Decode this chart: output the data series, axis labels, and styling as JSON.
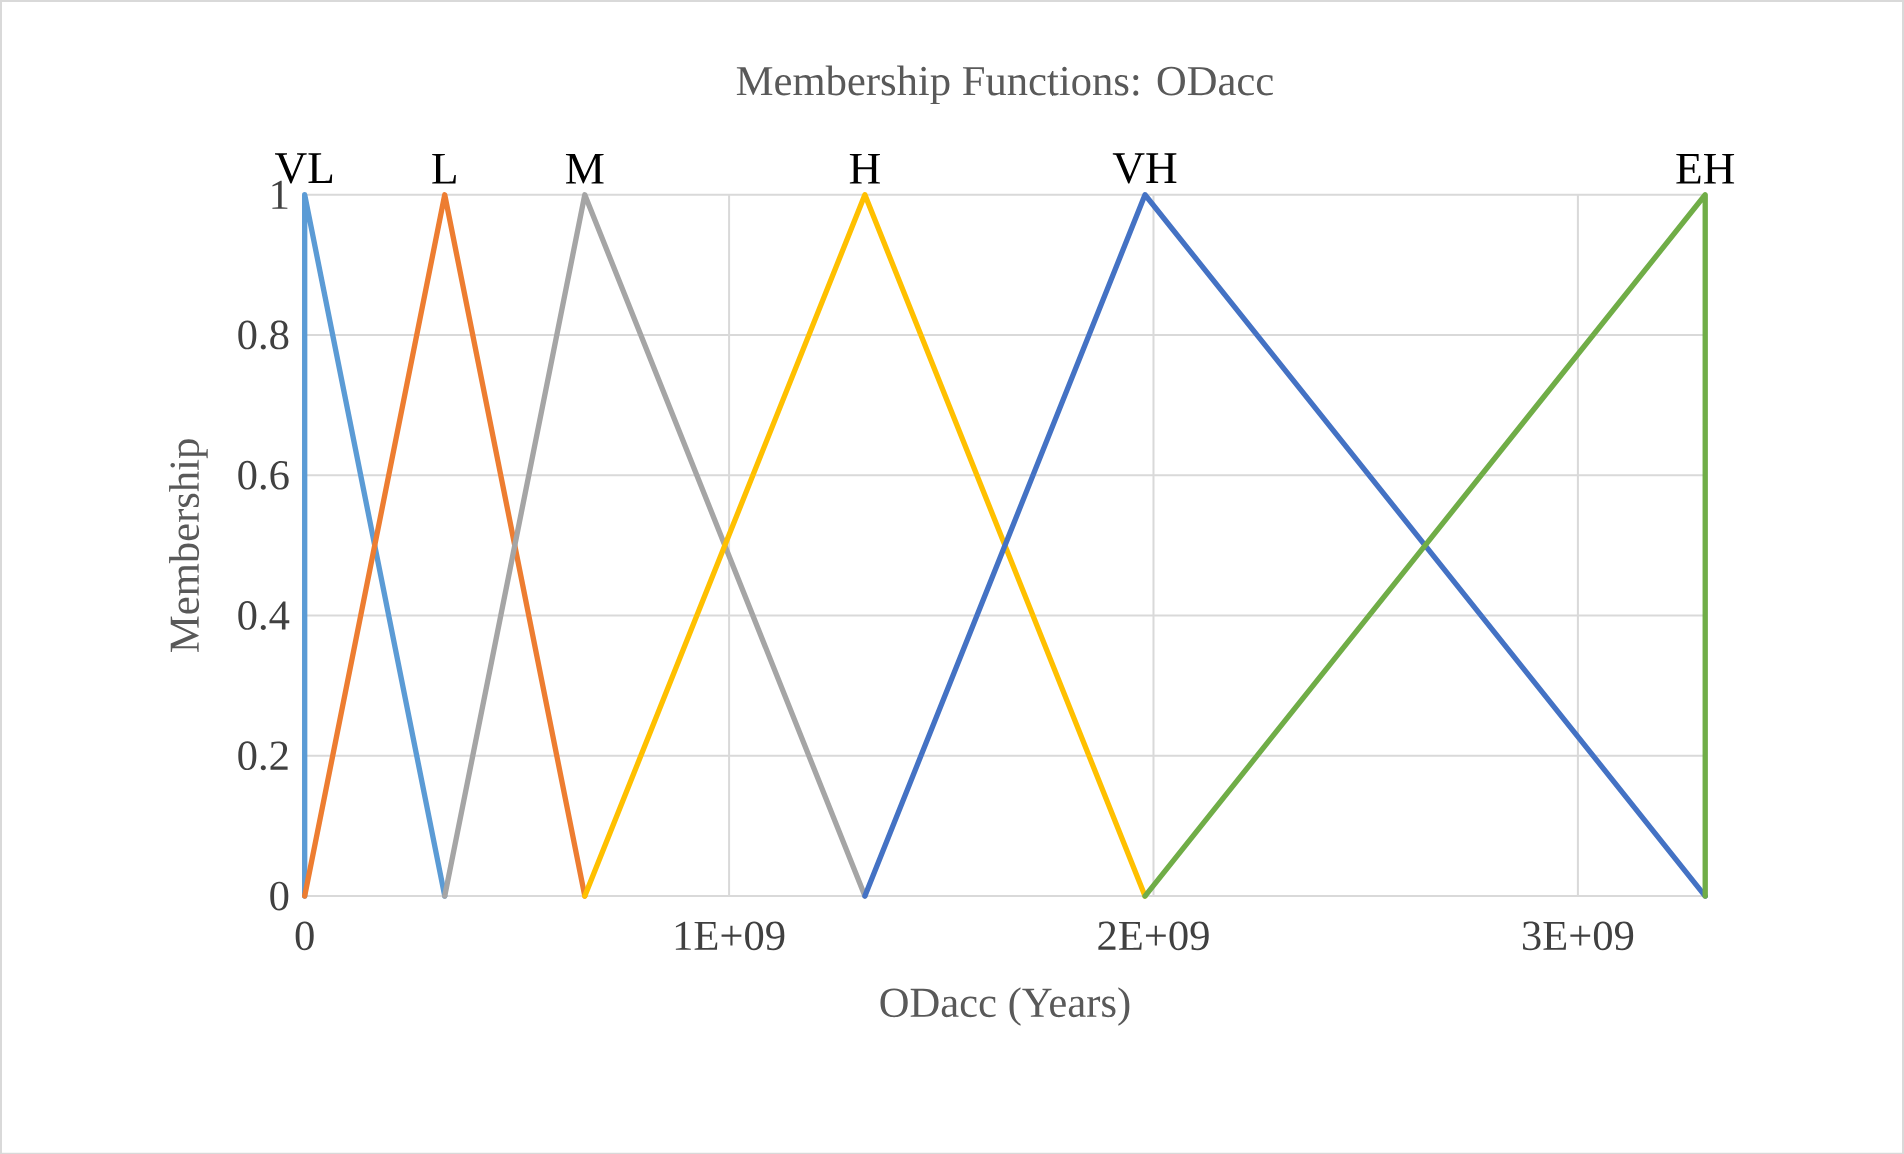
{
  "chart_data": {
    "type": "line",
    "title": "Membership Functions: ODacc",
    "xlabel": "ODacc (Years)",
    "ylabel": "Membership",
    "xlim": [
      0,
      3300000000
    ],
    "xticks": [
      0,
      {
        "value": 1000000000,
        "label": "1E+09"
      },
      {
        "value": 2000000000,
        "label": "2E+09"
      },
      {
        "value": 3000000000,
        "label": "3E+09"
      }
    ],
    "ylim": [
      0,
      1
    ],
    "yticks": [
      0,
      0.2,
      0.4,
      0.6,
      0.8,
      1
    ],
    "grid": true,
    "legend": false,
    "marker": "none",
    "line_style": "solid",
    "series": [
      {
        "name": "VL",
        "color": "#5b9bd5",
        "x": [
          0,
          0,
          330000000
        ],
        "values": [
          0,
          1,
          0
        ]
      },
      {
        "name": "L",
        "color": "#ed7d31",
        "x": [
          0,
          330000000,
          660000000
        ],
        "values": [
          0,
          1,
          0
        ]
      },
      {
        "name": "M",
        "color": "#a5a5a5",
        "x": [
          330000000,
          660000000,
          1320000000
        ],
        "values": [
          0,
          1,
          0
        ]
      },
      {
        "name": "H",
        "color": "#ffc000",
        "x": [
          660000000,
          1320000000,
          1980000000
        ],
        "values": [
          0,
          1,
          0
        ]
      },
      {
        "name": "VH",
        "color": "#4472c4",
        "x": [
          1320000000,
          1980000000,
          3300000000
        ],
        "values": [
          0,
          1,
          0
        ]
      },
      {
        "name": "EH",
        "color": "#70ad47",
        "x": [
          1980000000,
          3300000000,
          3300000000
        ],
        "values": [
          0,
          1,
          0
        ]
      }
    ]
  }
}
